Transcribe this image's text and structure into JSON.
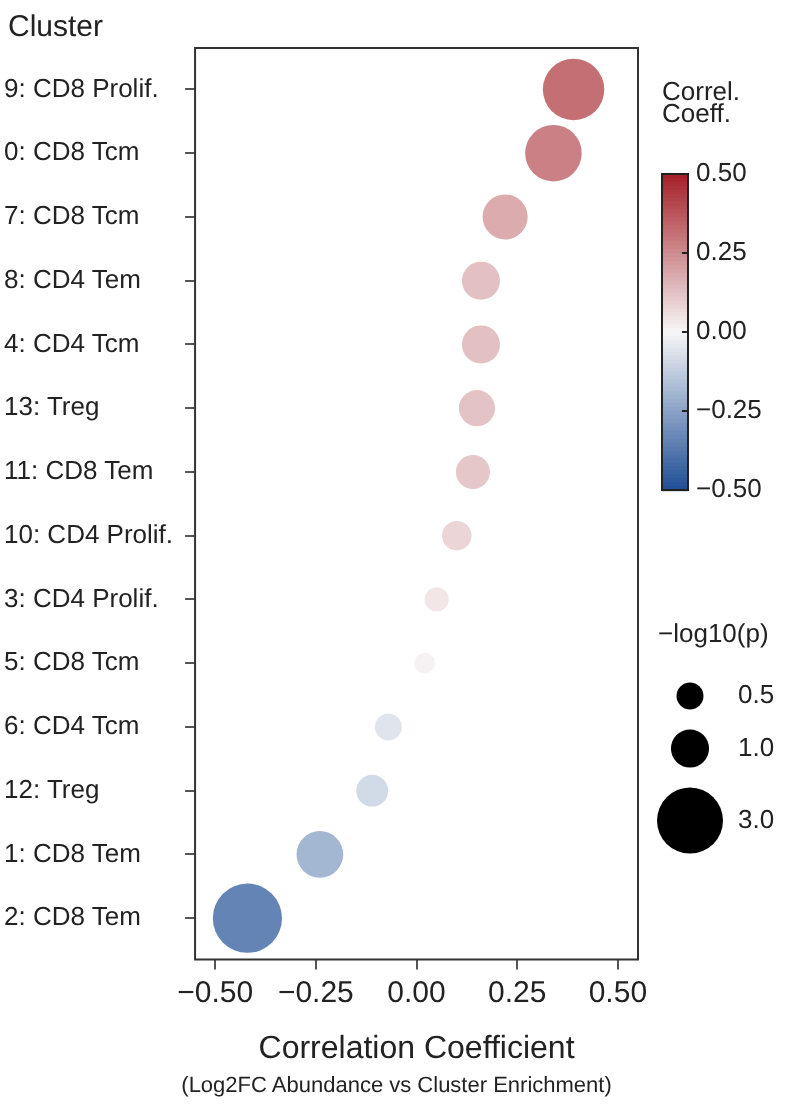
{
  "chart_data": {
    "type": "bubble",
    "ylabel": "Cluster",
    "xlabel": "Correlation Coefficient",
    "annotations": [
      "(Log2FC Abundance vs Cluster Enrichment)"
    ],
    "categories": [
      "9: CD8 Prolif.",
      "0: CD8 Tcm",
      "7: CD8 Tcm",
      "8: CD4 Tem",
      "4: CD4 Tcm",
      "13: Treg",
      "11: CD8 Tem",
      "10: CD4 Prolif.",
      "3: CD4 Prolif.",
      "5: CD8 Tcm",
      "6: CD4 Tcm",
      "12: Treg",
      "1: CD8 Tem",
      "2: CD8 Tem"
    ],
    "values": [
      0.39,
      0.34,
      0.22,
      0.16,
      0.16,
      0.15,
      0.14,
      0.1,
      0.05,
      0.02,
      -0.07,
      -0.11,
      -0.24,
      -0.42
    ],
    "cvalues": [
      0.39,
      0.34,
      0.22,
      0.16,
      0.16,
      0.15,
      0.14,
      0.1,
      0.05,
      0.02,
      -0.07,
      -0.11,
      -0.24,
      -0.42
    ],
    "sizes": [
      2.6,
      2.2,
      1.4,
      1.0,
      1.0,
      0.9,
      0.8,
      0.6,
      0.4,
      0.3,
      0.5,
      0.7,
      1.5,
      3.3
    ],
    "size_legend": [
      {
        "value": 0.5,
        "label": "0.5"
      },
      {
        "value": 1,
        "label": "1.0"
      },
      {
        "value": 3,
        "label": "3.0"
      }
    ],
    "legend_title": "−log10(p)",
    "clabel": "Correl.\nCoeff.",
    "clim": [
      -0.5,
      0.5
    ],
    "cticks": [
      {
        "value": -0.5,
        "label": "−0.50"
      },
      {
        "value": -0.25,
        "label": "−0.25"
      },
      {
        "value": 0,
        "label": "0.00"
      },
      {
        "value": 0.25,
        "label": "0.25"
      },
      {
        "value": 0.5,
        "label": "0.50"
      }
    ],
    "orientation": "horizontal",
    "xlim": [
      -0.55,
      0.55
    ],
    "xticks": [
      {
        "value": -0.5,
        "label": "−0.50"
      },
      {
        "value": -0.25,
        "label": "−0.25"
      },
      {
        "value": 0,
        "label": "0.00"
      },
      {
        "value": 0.25,
        "label": "0.25"
      },
      {
        "value": 0.5,
        "label": "0.50"
      }
    ],
    "grid": false
  }
}
